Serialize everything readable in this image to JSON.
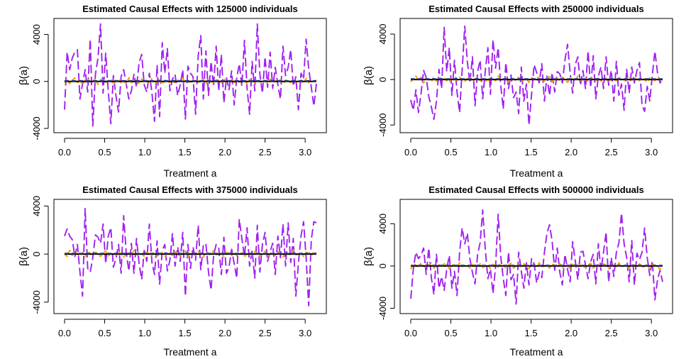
{
  "colors": {
    "estimate": "#A020F0",
    "orange_line": "#FFA500",
    "truth": "#000000",
    "blue_line": "#1E3A8A"
  },
  "chart_data": [
    {
      "type": "line",
      "title": "Estimated Causal Effects with 125000 individuals",
      "xlabel": "Treatment a",
      "ylabel": "β(a)",
      "xlim": [
        0,
        3.14
      ],
      "ylim": [
        -4000,
        5000
      ],
      "xticks": [
        "0.0",
        "0.5",
        "1.0",
        "1.5",
        "2.0",
        "2.5",
        "3.0"
      ],
      "yticks": [
        "-4000",
        "0",
        "4000"
      ],
      "x_range": [
        0,
        3.14
      ],
      "series": [
        {
          "style": "long-dash",
          "color": "#A020F0",
          "values": [
            -2400,
            2500,
            1000,
            2000,
            2500,
            2700,
            -1500,
            -200,
            1000,
            -900,
            3600,
            -3800,
            600,
            2000,
            4900,
            -1000,
            2400,
            -800,
            -3600,
            500,
            -1200,
            -2600,
            400,
            1000,
            -200,
            -1500,
            -800,
            600,
            -500,
            1600,
            2300,
            -300,
            -900,
            700,
            -1000,
            -3400,
            1400,
            -3000,
            3300,
            700,
            2800,
            -800,
            200,
            600,
            -1200,
            -300,
            1000,
            -3200,
            1300,
            700,
            400,
            -2800,
            2200,
            3900,
            -1500,
            2600,
            -1200,
            1700,
            -400,
            3000,
            -800,
            2300,
            -1800,
            300,
            -700,
            900,
            -2000,
            300,
            1500,
            -400,
            3500,
            -500,
            -2800,
            1700,
            -800,
            4900,
            600,
            -1000,
            2100,
            -500,
            2500,
            -600,
            1200,
            -300,
            -1500,
            3000,
            500,
            1200,
            2700,
            -400,
            400,
            -2400,
            700,
            200,
            3600,
            1100,
            -500,
            -2100,
            -200
          ]
        },
        {
          "style": "dashed",
          "color": "#FFA500",
          "values": [
            -100,
            200,
            -200,
            100,
            300,
            -100,
            200,
            -300,
            100,
            250,
            -150,
            0,
            200,
            -250,
            150,
            100,
            -100,
            0,
            200,
            -300,
            100,
            150,
            -100,
            50,
            -200,
            300,
            -100,
            100,
            0,
            -150,
            200,
            -50,
            100,
            -200,
            250,
            0,
            -100,
            150,
            -250,
            100,
            50,
            -100,
            200,
            -150,
            100,
            0,
            250,
            -100,
            50,
            -200,
            150,
            100,
            -50,
            0,
            200,
            -250,
            100,
            50,
            -100,
            150,
            0,
            -200,
            300,
            -100,
            50,
            100,
            -150,
            200,
            -50,
            0,
            100,
            -200,
            150,
            50,
            -100,
            200,
            -50,
            0,
            100,
            -150,
            200,
            -100,
            50,
            0,
            150,
            -200,
            100,
            50,
            -100,
            200,
            -50,
            0,
            100,
            -150,
            250,
            -100,
            50,
            0,
            100
          ]
        },
        {
          "style": "solid",
          "color": "#000000",
          "values": [
            0,
            0
          ]
        },
        {
          "style": "dashed",
          "color": "#1E3A8A",
          "values": [
            50,
            50
          ]
        }
      ]
    },
    {
      "type": "line",
      "title": "Estimated Causal Effects with 250000 individuals",
      "xlabel": "Treatment a",
      "ylabel": "β(a)",
      "xlim": [
        0,
        3.14
      ],
      "ylim": [
        -4300,
        5000
      ],
      "xticks": [
        "0.0",
        "0.5",
        "1.0",
        "1.5",
        "2.0",
        "2.5",
        "3.0"
      ],
      "yticks": [
        "-4000",
        "0",
        "4000"
      ],
      "x_range": [
        0,
        3.14
      ],
      "series": [
        {
          "style": "long-dash",
          "color": "#A020F0",
          "values": [
            -1800,
            -2700,
            -900,
            -2900,
            -1200,
            800,
            200,
            -1500,
            -2400,
            -3500,
            -1900,
            900,
            -800,
            4600,
            700,
            2800,
            -1400,
            1700,
            -1100,
            -2900,
            800,
            4700,
            1600,
            -300,
            2000,
            -2300,
            700,
            1700,
            -1700,
            800,
            2800,
            -1300,
            3500,
            1000,
            2800,
            -500,
            -2600,
            1500,
            -800,
            400,
            -1600,
            -1100,
            -3000,
            1100,
            -1900,
            -400,
            -4000,
            -1300,
            1300,
            600,
            -300,
            1400,
            -1900,
            300,
            -1400,
            600,
            -1100,
            700,
            500,
            -300,
            1700,
            3100,
            600,
            -1200,
            1300,
            2000,
            -500,
            800,
            -800,
            2500,
            -700,
            2100,
            -1700,
            300,
            1100,
            -800,
            2000,
            -500,
            800,
            -1900,
            1600,
            -1400,
            -400,
            -2700,
            900,
            -1200,
            1100,
            -300,
            800,
            1500,
            -2300,
            -2800,
            -600,
            -1900,
            400,
            2500,
            600,
            -300,
            100
          ]
        },
        {
          "style": "dashed",
          "color": "#FFA500",
          "values": [
            -200,
            100,
            300,
            -100,
            200,
            -300,
            100,
            0,
            -200,
            250,
            -150,
            100,
            0,
            200,
            -100,
            -250,
            150,
            50,
            -100,
            200,
            0,
            -150,
            100,
            250,
            -200,
            50,
            100,
            -100,
            200,
            0,
            -250,
            150,
            50,
            -100,
            300,
            -50,
            0,
            100,
            -200,
            150,
            50,
            -100,
            200,
            -150,
            0,
            100,
            -250,
            150,
            50,
            -100,
            200,
            0,
            -150,
            100,
            250,
            -200,
            50,
            100,
            -100,
            200,
            0,
            -250,
            150,
            50,
            -100,
            300,
            -50,
            0,
            100,
            -200,
            150,
            50,
            -100,
            200,
            -150,
            0,
            100,
            -250,
            150,
            50,
            -100,
            200,
            0,
            -150,
            100,
            250,
            -200,
            50,
            100,
            -100,
            200,
            0,
            -250,
            150,
            50,
            -100,
            200,
            0,
            100
          ]
        },
        {
          "style": "solid",
          "color": "#000000",
          "values": [
            0,
            0
          ]
        },
        {
          "style": "dashed",
          "color": "#1E3A8A",
          "values": [
            50,
            50
          ]
        }
      ]
    },
    {
      "type": "line",
      "title": "Estimated Causal Effects with 375000 individuals",
      "xlabel": "Treatment a",
      "ylabel": "β(a)",
      "xlim": [
        0,
        3.14
      ],
      "ylim": [
        -4600,
        4200
      ],
      "xticks": [
        "0.0",
        "0.5",
        "1.0",
        "1.5",
        "2.0",
        "2.5",
        "3.0"
      ],
      "yticks": [
        "-4000",
        "0",
        "4000"
      ],
      "x_range": [
        0,
        3.14
      ],
      "series": [
        {
          "style": "long-dash",
          "color": "#A020F0",
          "values": [
            1500,
            2100,
            1500,
            1200,
            -200,
            800,
            -1500,
            -3500,
            3800,
            -1200,
            -1500,
            -300,
            1600,
            1400,
            900,
            2500,
            -800,
            1500,
            2200,
            -1100,
            -400,
            800,
            -1600,
            3200,
            100,
            -1400,
            900,
            -1600,
            1300,
            -800,
            -2100,
            300,
            -600,
            2500,
            -700,
            -1700,
            1100,
            -2500,
            300,
            800,
            -1400,
            -500,
            1700,
            -1000,
            600,
            -600,
            1800,
            -3500,
            800,
            -1200,
            600,
            -500,
            2400,
            -1300,
            700,
            900,
            -1500,
            -3000,
            -100,
            800,
            500,
            -1700,
            1400,
            -1600,
            -1100,
            400,
            -800,
            -2000,
            2900,
            1300,
            -200,
            2200,
            -1000,
            300,
            -2000,
            2400,
            -1500,
            800,
            1800,
            -600,
            200,
            900,
            -1700,
            1500,
            -300,
            2500,
            -1000,
            2600,
            -700,
            1300,
            -3500,
            -800,
            1500,
            2700,
            -300,
            -4300,
            1200,
            2700,
            2600
          ]
        },
        {
          "style": "dashed",
          "color": "#FFA500",
          "values": [
            0,
            -200,
            300,
            -100,
            200,
            0,
            -150,
            100,
            -250,
            200,
            50,
            -100,
            150,
            0,
            -200,
            100,
            250,
            -150,
            50,
            100,
            -100,
            200,
            0,
            -250,
            150,
            50,
            -100,
            300,
            -50,
            0,
            100,
            -200,
            150,
            50,
            -100,
            200,
            -150,
            0,
            100,
            -250,
            150,
            50,
            -100,
            200,
            0,
            -150,
            100,
            250,
            -200,
            50,
            100,
            -100,
            200,
            0,
            -250,
            150,
            50,
            -100,
            300,
            -50,
            0,
            100,
            -200,
            150,
            50,
            -100,
            200,
            -150,
            0,
            100,
            -250,
            150,
            50,
            -100,
            200,
            0,
            -150,
            100,
            250,
            -200,
            50,
            100,
            -100,
            200,
            0,
            -250,
            150,
            50,
            -100,
            300,
            -50,
            0,
            100,
            -200,
            150,
            50,
            -100,
            200,
            100
          ]
        },
        {
          "style": "solid",
          "color": "#000000",
          "values": [
            0,
            0
          ]
        },
        {
          "style": "dashed",
          "color": "#1E3A8A",
          "values": [
            50,
            50
          ]
        }
      ]
    },
    {
      "type": "line",
      "title": "Estimated Causal Effects with 500000 individuals",
      "xlabel": "Treatment a",
      "ylabel": "β(a)",
      "xlim": [
        0,
        3.14
      ],
      "ylim": [
        -4100,
        5900
      ],
      "xticks": [
        "0.0",
        "0.5",
        "1.0",
        "1.5",
        "2.0",
        "2.5",
        "3.0"
      ],
      "yticks": [
        "-4000",
        "0",
        "4000"
      ],
      "x_range": [
        0,
        3.14
      ],
      "series": [
        {
          "style": "long-dash",
          "color": "#A020F0",
          "values": [
            -3100,
            -300,
            1300,
            700,
            1000,
            1700,
            -800,
            1700,
            -1100,
            -2700,
            1100,
            -2100,
            -1000,
            -2300,
            -300,
            1000,
            -2100,
            -500,
            -2800,
            1300,
            3600,
            2100,
            3100,
            700,
            -600,
            -1700,
            1100,
            2200,
            5300,
            1500,
            -1200,
            -300,
            -2600,
            -100,
            4900,
            900,
            -1200,
            -2800,
            1300,
            -1300,
            -800,
            -3600,
            1300,
            -500,
            -2100,
            300,
            -1800,
            700,
            200,
            -1600,
            -600,
            -1100,
            1300,
            3100,
            3900,
            2400,
            -400,
            1700,
            -600,
            -1800,
            1100,
            -300,
            -1500,
            2300,
            500,
            -1300,
            1300,
            1400,
            100,
            -1200,
            400,
            1100,
            -1700,
            2100,
            -400,
            1300,
            3200,
            -1500,
            800,
            -1000,
            1300,
            2200,
            5000,
            2100,
            800,
            -1500,
            2400,
            -1800,
            1200,
            600,
            1300,
            3600,
            800,
            -900,
            500,
            -3200,
            -1300,
            -400,
            -1500
          ]
        },
        {
          "style": "dashed",
          "color": "#FFA500",
          "values": [
            -300,
            200,
            100,
            -200,
            300,
            0,
            -150,
            100,
            250,
            -200,
            50,
            100,
            -100,
            200,
            0,
            -250,
            150,
            50,
            -100,
            300,
            -50,
            0,
            100,
            -200,
            150,
            50,
            -100,
            200,
            -150,
            0,
            100,
            -250,
            150,
            50,
            -100,
            200,
            0,
            -150,
            100,
            250,
            -200,
            50,
            100,
            -100,
            200,
            0,
            -250,
            150,
            50,
            -100,
            300,
            -50,
            0,
            100,
            -200,
            150,
            50,
            -100,
            200,
            -150,
            0,
            100,
            -250,
            150,
            50,
            -100,
            200,
            0,
            -150,
            100,
            250,
            -200,
            50,
            100,
            -100,
            200,
            0,
            -250,
            150,
            50,
            -100,
            300,
            -50,
            0,
            100,
            -200,
            150,
            50,
            -100,
            200,
            -150,
            0,
            100,
            -250,
            150,
            50,
            -100,
            -300,
            0
          ]
        },
        {
          "style": "solid",
          "color": "#000000",
          "values": [
            0,
            0
          ]
        },
        {
          "style": "dashed",
          "color": "#1E3A8A",
          "values": [
            50,
            50
          ]
        }
      ]
    }
  ]
}
